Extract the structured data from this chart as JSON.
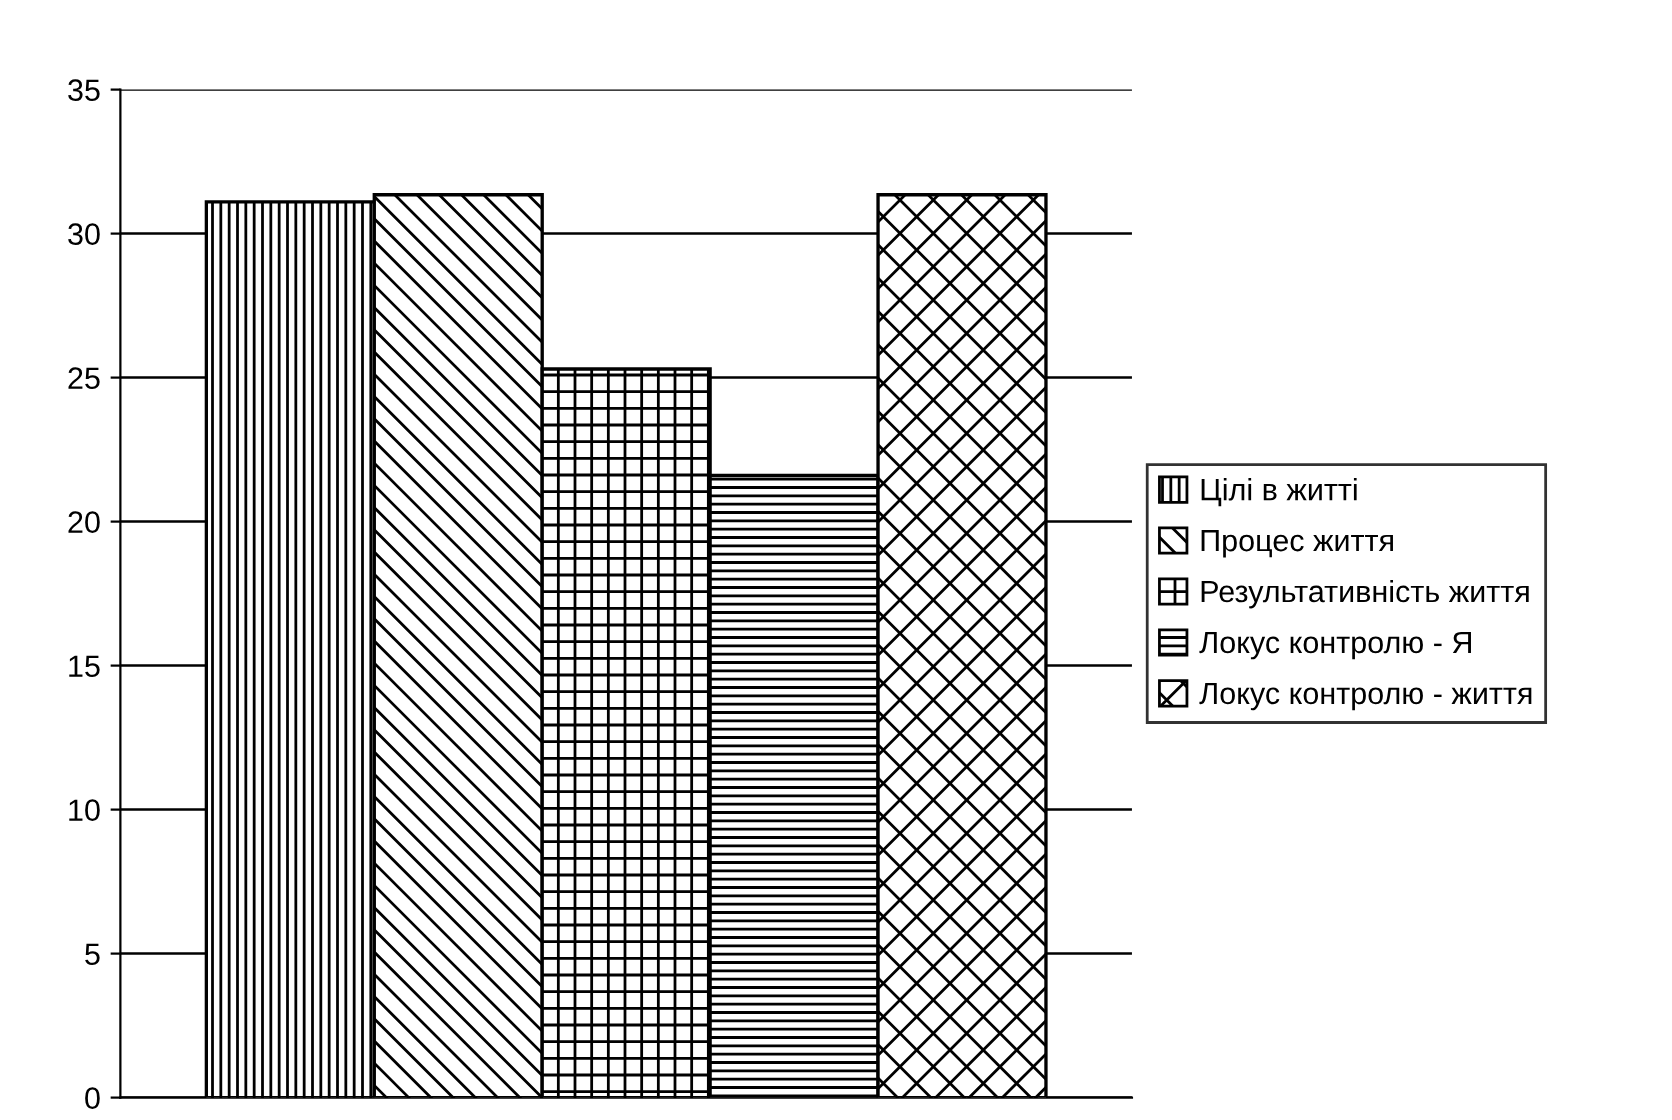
{
  "chart_data": {
    "type": "bar",
    "categories": [
      null
    ],
    "series": [
      {
        "name": "Цілі в житті",
        "color": "#000000",
        "values": [
          31.1
        ]
      },
      {
        "name": "Процес життя",
        "color": "#000000",
        "values": [
          31.35
        ]
      },
      {
        "name": "Результативність життя",
        "color": "#000000",
        "values": [
          25.3
        ]
      },
      {
        "name": "Локус контролю - Я",
        "color": "#000000",
        "values": [
          21.6
        ]
      },
      {
        "name": "Локус контролю - життя",
        "color": "#000000",
        "values": [
          31.35
        ]
      }
    ],
    "ylim": [
      0,
      35
    ],
    "yticks": [
      0,
      5,
      10,
      15,
      20,
      25,
      30,
      35
    ],
    "grid": "y",
    "legend": "right"
  }
}
